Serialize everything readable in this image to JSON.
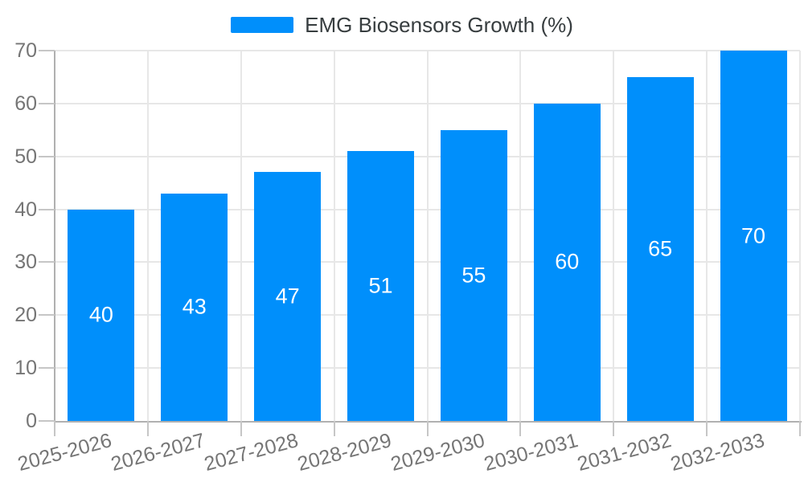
{
  "chart_data": {
    "type": "bar",
    "title": "EMG Biosensors Growth (%)",
    "legend_entries": [
      "EMG Biosensors Growth (%)"
    ],
    "legend_position": "top",
    "categories": [
      "2025-2026",
      "2026-2027",
      "2027-2028",
      "2028-2029",
      "2029-2030",
      "2030-2031",
      "2031-2032",
      "2032-2033"
    ],
    "values": [
      40,
      43,
      47,
      51,
      55,
      60,
      65,
      70
    ],
    "bar_value_labels": [
      "40",
      "43",
      "47",
      "51",
      "55",
      "60",
      "65",
      "70"
    ],
    "xlabel": "",
    "ylabel": "",
    "ylim": [
      0,
      70
    ],
    "ytick_step": 10,
    "yticks": [
      0,
      10,
      20,
      30,
      40,
      50,
      60,
      70
    ],
    "grid": true,
    "colors": {
      "bar": "#008FFB",
      "grid": "#e7e7e7",
      "axis": "#b0b0b0",
      "tick": "#c6c6c6",
      "tick_label": "#757575",
      "legend_text": "#373d3f",
      "bar_label": "#ffffff",
      "background": "#ffffff"
    }
  }
}
